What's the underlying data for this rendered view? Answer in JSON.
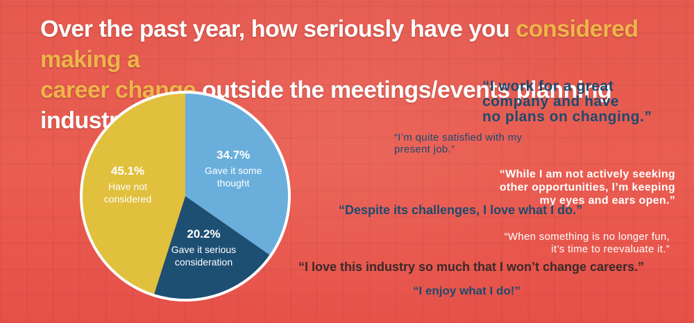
{
  "title": {
    "part1": "Over the past year, how seriously have you ",
    "highlight1": "considered making a",
    "highlight2": "career change",
    "part2": " outside the meetings/events planning industry?"
  },
  "colors": {
    "highlight": "#f0b44a",
    "background": "#e8574e",
    "quote_blue": "#1d4a6e"
  },
  "chart_data": {
    "type": "pie",
    "title": "",
    "slices": [
      {
        "label": "Gave it some thought",
        "label_lines": [
          "Gave it some",
          "thought"
        ],
        "pct_text": "34.7%",
        "value": 34.7,
        "color": "#6aaedc"
      },
      {
        "label": "Gave it serious consideration",
        "label_lines": [
          "Gave it serious",
          "consideration"
        ],
        "pct_text": "20.2%",
        "value": 20.2,
        "color": "#1d4f73"
      },
      {
        "label": "Have not considered",
        "label_lines": [
          "Have not",
          "considered"
        ],
        "pct_text": "45.1%",
        "value": 45.1,
        "color": "#e0c03c"
      }
    ]
  },
  "quotes": [
    "“I work for a great\ncompany and have\nno plans on changing.”",
    "“I’m quite satisfied with my\npresent job.”",
    "“While I am not actively seeking\nother opportunities, I’m keeping\nmy eyes and ears open.”",
    "“Despite its challenges, I love what I do.”",
    "“When something is no longer fun,\nit’s time to reevaluate it.”",
    "“I love this industry so much that I won’t change careers.”",
    "“I enjoy what I do!”"
  ]
}
